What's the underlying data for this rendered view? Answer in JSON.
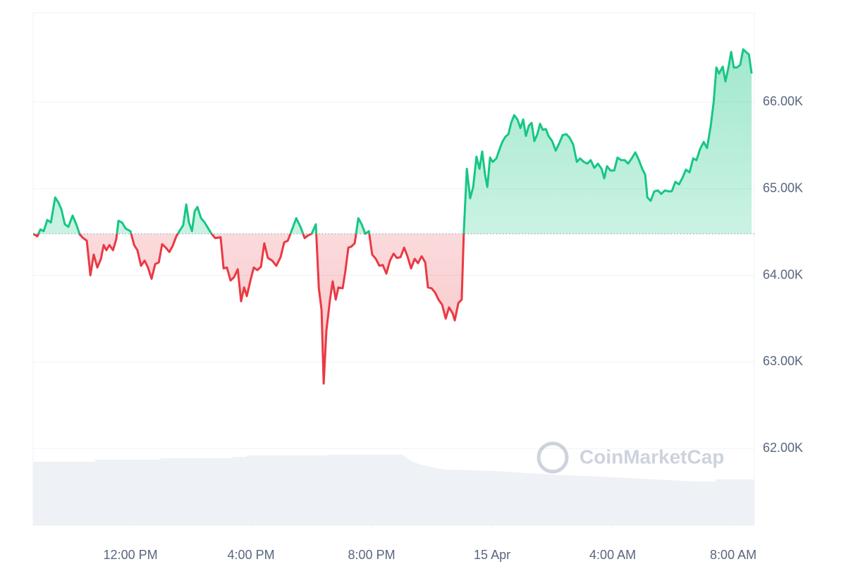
{
  "chart_data": {
    "type": "line",
    "watermark": "CoinMarketCap",
    "up_color": "#16c784",
    "down_color": "#ea3943",
    "baseline": 64480,
    "xlim": [
      8.77,
      32.7
    ],
    "ylim": [
      61114,
      67033
    ],
    "xticks": [
      {
        "value": 12,
        "label": "12:00 PM"
      },
      {
        "value": 16,
        "label": "4:00 PM"
      },
      {
        "value": 20,
        "label": "8:00 PM"
      },
      {
        "value": 24,
        "label": "15 Apr"
      },
      {
        "value": 28,
        "label": "4:00 AM"
      },
      {
        "value": 32,
        "label": "8:00 AM"
      }
    ],
    "yticks": [
      {
        "value": 62000,
        "label": "62.00K"
      },
      {
        "value": 63000,
        "label": "63.00K"
      },
      {
        "value": 64000,
        "label": "64.00K"
      },
      {
        "value": 65000,
        "label": "65.00K"
      },
      {
        "value": 66000,
        "label": "66.00K"
      }
    ],
    "grid": true,
    "x": [
      8.77,
      8.91,
      9.01,
      9.12,
      9.24,
      9.36,
      9.5,
      9.61,
      9.71,
      9.82,
      9.94,
      10.08,
      10.2,
      10.32,
      10.43,
      10.55,
      10.67,
      10.78,
      10.9,
      11.02,
      11.11,
      11.2,
      11.3,
      11.42,
      11.53,
      11.6,
      11.72,
      11.84,
      12.0,
      12.12,
      12.23,
      12.35,
      12.47,
      12.58,
      12.7,
      12.82,
      12.94,
      13.05,
      13.17,
      13.29,
      13.4,
      13.52,
      13.64,
      13.75,
      13.85,
      13.94,
      14.04,
      14.13,
      14.22,
      14.34,
      14.46,
      14.6,
      14.69,
      14.81,
      14.99,
      15.09,
      15.2,
      15.32,
      15.44,
      15.56,
      15.67,
      15.77,
      15.86,
      15.98,
      16.09,
      16.21,
      16.33,
      16.44,
      16.56,
      16.7,
      16.84,
      16.98,
      17.1,
      17.22,
      17.33,
      17.5,
      17.64,
      17.78,
      17.89,
      18.01,
      18.15,
      18.25,
      18.34,
      18.41,
      18.5,
      18.62,
      18.71,
      18.81,
      18.9,
      19.04,
      19.13,
      19.23,
      19.32,
      19.44,
      19.56,
      19.67,
      19.79,
      19.91,
      20.02,
      20.14,
      20.26,
      20.37,
      20.49,
      20.61,
      20.73,
      20.84,
      20.96,
      21.08,
      21.19,
      21.31,
      21.43,
      21.54,
      21.66,
      21.78,
      21.87,
      21.99,
      22.11,
      22.22,
      22.34,
      22.46,
      22.57,
      22.69,
      22.76,
      22.88,
      22.99,
      23.06,
      23.16,
      23.27,
      23.37,
      23.48,
      23.58,
      23.67,
      23.77,
      23.84,
      23.93,
      24.02,
      24.14,
      24.26,
      24.35,
      24.44,
      24.54,
      24.63,
      24.73,
      24.84,
      24.94,
      25.03,
      25.12,
      25.22,
      25.31,
      25.4,
      25.5,
      25.59,
      25.68,
      25.78,
      25.87,
      25.99,
      26.11,
      26.22,
      26.34,
      26.46,
      26.57,
      26.69,
      26.81,
      26.92,
      27.04,
      27.16,
      27.27,
      27.39,
      27.51,
      27.63,
      27.72,
      27.81,
      27.93,
      28.05,
      28.16,
      28.28,
      28.4,
      28.51,
      28.63,
      28.75,
      28.87,
      28.98,
      29.08,
      29.15,
      29.26,
      29.38,
      29.5,
      29.61,
      29.73,
      29.85,
      29.96,
      30.08,
      30.2,
      30.32,
      30.43,
      30.55,
      30.67,
      30.78,
      30.9,
      31.02,
      31.13,
      31.25,
      31.35,
      31.44,
      31.53,
      31.65,
      31.74,
      31.84,
      31.93,
      32.02,
      32.12,
      32.23,
      32.33,
      32.42,
      32.52,
      32.61
    ],
    "values": [
      64480,
      64450,
      64530,
      64510,
      64640,
      64610,
      64900,
      64840,
      64760,
      64590,
      64560,
      64690,
      64590,
      64470,
      64430,
      64400,
      64000,
      64240,
      64090,
      64190,
      64350,
      64290,
      64350,
      64290,
      64420,
      64630,
      64610,
      64540,
      64510,
      64350,
      64290,
      64110,
      64170,
      64090,
      63960,
      64130,
      64150,
      64360,
      64320,
      64270,
      64340,
      64450,
      64520,
      64580,
      64820,
      64610,
      64510,
      64740,
      64790,
      64660,
      64610,
      64530,
      64480,
      64430,
      64440,
      64080,
      64090,
      63940,
      63980,
      64070,
      63700,
      63860,
      63760,
      63940,
      64090,
      64060,
      64100,
      64370,
      64200,
      64170,
      64110,
      64210,
      64380,
      64400,
      64500,
      64660,
      64560,
      64430,
      64460,
      64480,
      64590,
      63850,
      63600,
      62750,
      63360,
      63720,
      63930,
      63720,
      63860,
      63850,
      64050,
      64320,
      64330,
      64370,
      64660,
      64590,
      64480,
      64510,
      64240,
      64190,
      64110,
      64120,
      64020,
      64170,
      64250,
      64200,
      64210,
      64320,
      64220,
      64080,
      64190,
      64140,
      64220,
      64150,
      63860,
      63850,
      63800,
      63720,
      63660,
      63500,
      63630,
      63560,
      63480,
      63680,
      63720,
      64500,
      65230,
      64890,
      65020,
      65370,
      65230,
      65430,
      65150,
      65020,
      65360,
      65310,
      65350,
      65470,
      65550,
      65600,
      65630,
      65760,
      65850,
      65800,
      65700,
      65800,
      65610,
      65730,
      65760,
      65550,
      65630,
      65750,
      65680,
      65690,
      65610,
      65550,
      65440,
      65520,
      65620,
      65630,
      65590,
      65510,
      65310,
      65350,
      65310,
      65290,
      65330,
      65240,
      65290,
      65230,
      65120,
      65260,
      65210,
      65210,
      65360,
      65330,
      65330,
      65290,
      65350,
      65420,
      65330,
      65230,
      65160,
      64900,
      64860,
      64970,
      64980,
      64940,
      64980,
      64970,
      64970,
      65080,
      65050,
      65130,
      65220,
      65190,
      65350,
      65330,
      65460,
      65540,
      65470,
      65720,
      66000,
      66400,
      66330,
      66410,
      66240,
      66400,
      66580,
      66400,
      66400,
      66430,
      66610,
      66580,
      66550,
      66330
    ]
  }
}
